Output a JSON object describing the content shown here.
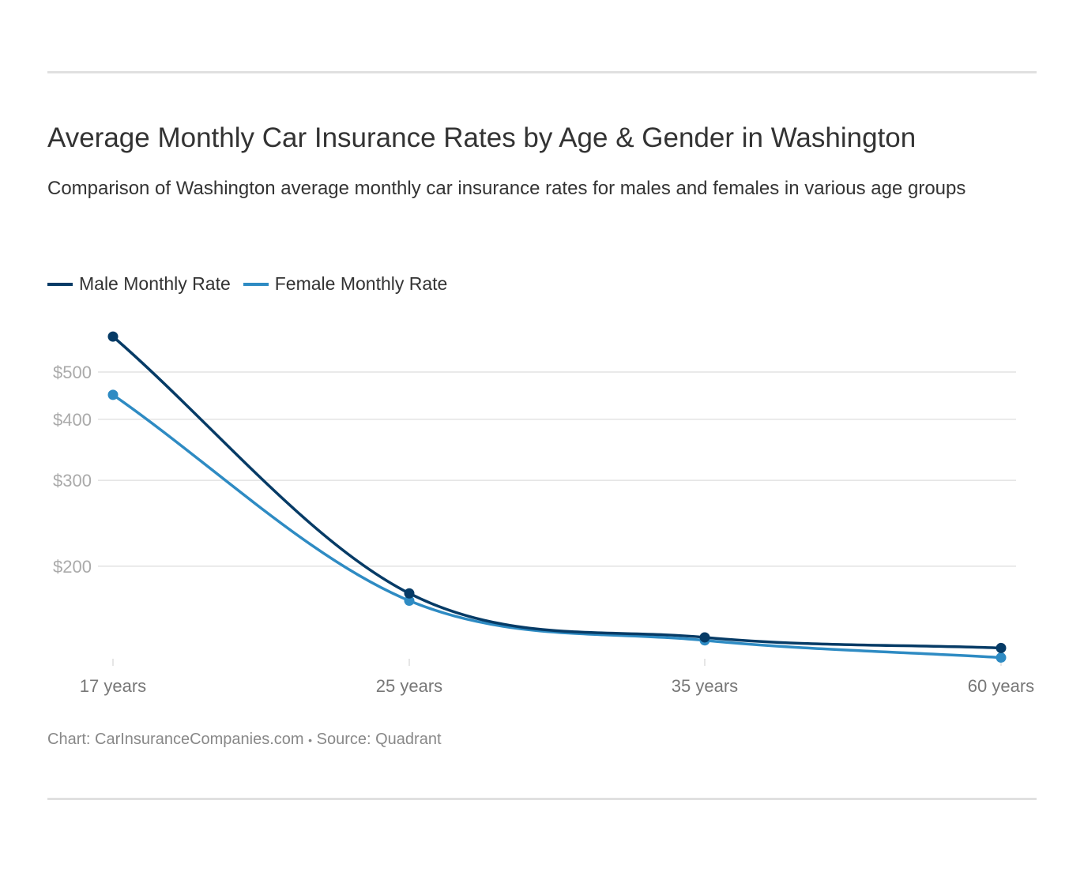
{
  "chart_data": {
    "type": "line",
    "title": "Average Monthly Car Insurance Rates by Age & Gender in Washington",
    "subtitle": "Comparison of Washington average monthly car insurance rates for males and females in various age groups",
    "categories": [
      "17 years",
      "25 years",
      "35 years",
      "60 years"
    ],
    "y_scale": "log",
    "y_ticks": [
      200,
      300,
      400,
      500
    ],
    "y_tick_labels": [
      "$200",
      "$300",
      "$400",
      "$500"
    ],
    "grid": true,
    "legend_position": "top-left",
    "series": [
      {
        "name": "Male Monthly Rate",
        "color": "#063b66",
        "values": [
          591,
          176,
          143,
          136
        ]
      },
      {
        "name": "Female Monthly Rate",
        "color": "#2e8bc3",
        "values": [
          449,
          170,
          141,
          130
        ]
      }
    ]
  },
  "footer": {
    "chart": "Chart: CarInsuranceCompanies.com",
    "separator": "•",
    "source": "Source: Quadrant"
  }
}
